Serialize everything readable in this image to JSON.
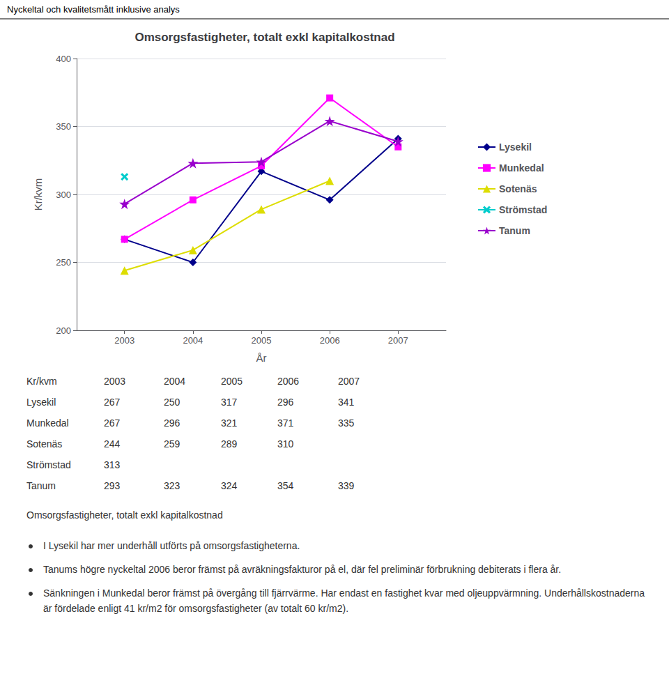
{
  "chart_data": {
    "type": "line",
    "header": "Nyckeltal och kvalitetsmått inklusive analys",
    "title": "Omsorgsfastigheter, totalt exkl kapitalkostnad",
    "xlabel": "År",
    "ylabel": "Kr/kvm",
    "x": [
      2003,
      2004,
      2005,
      2006,
      2007
    ],
    "xlim": [
      2002.3,
      2007.7
    ],
    "xticks": [
      2003,
      2004,
      2005,
      2006,
      2007
    ],
    "ylim": [
      200,
      400
    ],
    "yticks": [
      200,
      250,
      300,
      350,
      400
    ],
    "grid": true,
    "legend": "right",
    "series": [
      {
        "name": "Lysekil",
        "color": "#00008B",
        "marker": "diamond",
        "values": [
          267,
          250,
          317,
          296,
          341
        ]
      },
      {
        "name": "Munkedal",
        "color": "#FF00FF",
        "marker": "square",
        "values": [
          267,
          296,
          321,
          371,
          335
        ]
      },
      {
        "name": "Sotenäs",
        "color": "#DDDD00",
        "marker": "triangle",
        "values": [
          244,
          259,
          289,
          310,
          null
        ]
      },
      {
        "name": "Strömstad",
        "color": "#00CCCC",
        "marker": "x",
        "values": [
          313,
          null,
          null,
          null,
          null
        ]
      },
      {
        "name": "Tanum",
        "color": "#9900CC",
        "marker": "star",
        "values": [
          293,
          323,
          324,
          354,
          339
        ]
      }
    ],
    "table": {
      "columns": [
        "Kr/kvm",
        "2003",
        "2004",
        "2005",
        "2006",
        "2007"
      ],
      "rows": [
        [
          "Lysekil",
          267,
          250,
          317,
          296,
          341
        ],
        [
          "Munkedal",
          267,
          296,
          321,
          371,
          335
        ],
        [
          "Sotenäs",
          244,
          259,
          289,
          310,
          null
        ],
        [
          "Strömstad",
          313,
          null,
          null,
          null,
          null
        ],
        [
          "Tanum",
          293,
          323,
          324,
          354,
          339
        ]
      ]
    },
    "subtitle": "Omsorgsfastigheter, totalt exkl kapitalkostnad",
    "bullets": [
      "I Lysekil har mer underhåll utförts på omsorgsfastigheterna.",
      "Tanums högre nyckeltal 2006 beror främst på avräkningsfakturor på el, där fel preliminär förbrukning debiterats i flera år.",
      "Sänkningen i Munkedal beror främst på övergång till fjärrvärme. Har endast en fastighet kvar med oljeuppvärmning. Underhållskostnaderna är fördelade enligt 41 kr/m2 för omsorgsfastigheter (av totalt 60 kr/m2)."
    ]
  }
}
